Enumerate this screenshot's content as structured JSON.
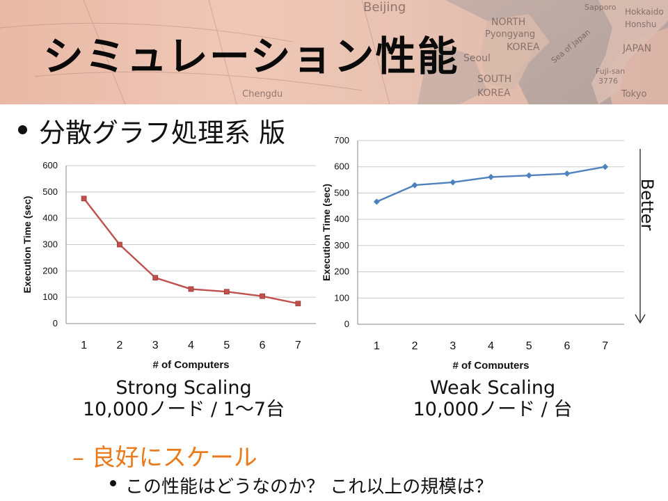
{
  "slide": {
    "title": "シミュレーション性能",
    "bullet": "分散グラフ処理系 版",
    "sub_bullet": "– 良好にスケール",
    "sub_sub_bullet": "この性能はどうなのか？ これ以上の規模は？",
    "better_label": "Better"
  },
  "map_labels": {
    "beijing": "Beijing",
    "north": "NORTH",
    "pyongyang": "Pyongyang",
    "korea": "KOREA",
    "seoul": "Seoul",
    "south": "SOUTH",
    "korea2": "KOREA",
    "sea": "Sea of Japan",
    "japan": "JAPAN",
    "sapporo": "Sapporo",
    "hokkaido": "Hokkaido",
    "honshu": "Honshu",
    "fuji": "Fuji-san",
    "fuji_height": "3776",
    "tokyo": "Tokyo",
    "chengdu": "Chengdu"
  },
  "captions": {
    "strong_title": "Strong Scaling",
    "strong_sub": "10,000ノード / 1〜7台",
    "weak_title": "Weak Scaling",
    "weak_sub": "10,000ノード / 台"
  },
  "colors": {
    "strong_series": "#c0504d",
    "weak_series": "#4f81bd",
    "accent_orange": "#e87a1c"
  },
  "chart_data": [
    {
      "type": "line",
      "title": "",
      "xlabel": "# of Computers",
      "ylabel": "Execution Time (sec)",
      "categories": [
        "1",
        "2",
        "3",
        "4",
        "5",
        "6",
        "7"
      ],
      "x": [
        1,
        2,
        3,
        4,
        5,
        6,
        7
      ],
      "series": [
        {
          "values": [
            475,
            300,
            174,
            131,
            121,
            104,
            76
          ],
          "marker": "square"
        }
      ],
      "ylim": [
        0,
        600
      ],
      "yticks": [
        "0",
        "100",
        "200",
        "300",
        "400",
        "500",
        "600"
      ],
      "grid": true,
      "legend": "none"
    },
    {
      "type": "line",
      "title": "",
      "xlabel": "# of Computers",
      "ylabel": "Execution Time (sec)",
      "categories": [
        "1",
        "2",
        "3",
        "4",
        "5",
        "6",
        "7"
      ],
      "x": [
        1,
        2,
        3,
        4,
        5,
        6,
        7
      ],
      "series": [
        {
          "values": [
            467,
            530,
            541,
            561,
            567,
            574,
            600
          ],
          "marker": "diamond"
        }
      ],
      "ylim": [
        0,
        700
      ],
      "yticks": [
        "0",
        "100",
        "200",
        "300",
        "400",
        "500",
        "600",
        "700"
      ],
      "grid": true,
      "legend": "none"
    }
  ]
}
